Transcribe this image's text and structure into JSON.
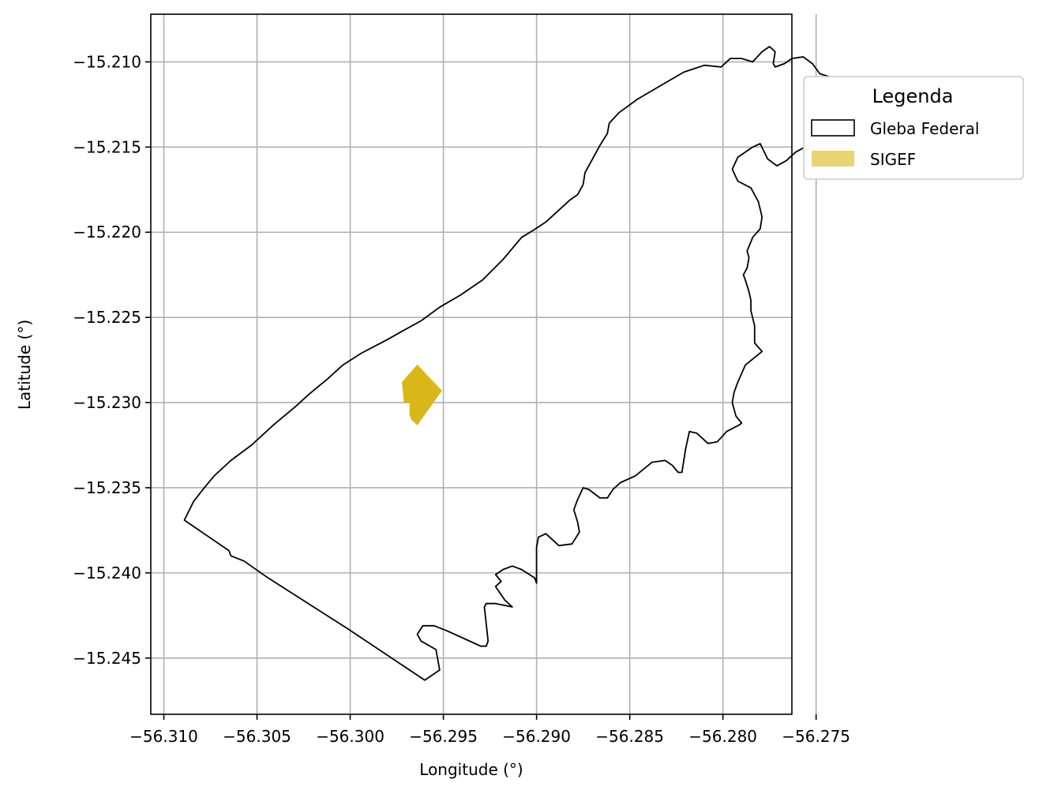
{
  "chart_data": {
    "type": "map",
    "xlabel": "Longitude (°)",
    "ylabel": "Latitude (°)",
    "xlim": [
      -56.3107,
      -56.2763
    ],
    "ylim": [
      -15.2483,
      -15.2072
    ],
    "xticks": [
      -56.31,
      -56.305,
      -56.3,
      -56.295,
      -56.29,
      -56.285,
      -56.28,
      -56.275
    ],
    "xtick_labels": [
      "−56.310",
      "−56.305",
      "−56.300",
      "−56.295",
      "−56.290",
      "−56.285",
      "−56.280",
      "−56.275"
    ],
    "yticks": [
      -15.21,
      -15.215,
      -15.22,
      -15.225,
      -15.23,
      -15.235,
      -15.24,
      -15.245
    ],
    "ytick_labels": [
      "−15.210",
      "−15.215",
      "−15.220",
      "−15.225",
      "−15.230",
      "−15.235",
      "−15.240",
      "−15.245"
    ],
    "grid": true,
    "legend": {
      "title": "Legenda",
      "placement": "outside-upper-right",
      "entries": [
        {
          "label": "Gleba Federal",
          "style": "outline",
          "edge_color": "#000000"
        },
        {
          "label": "SIGEF",
          "style": "fill",
          "fill_color": "#DAB718",
          "alpha": 0.6
        }
      ]
    },
    "layers": [
      {
        "name": "Gleba Federal",
        "edge_color": "#000000",
        "fill": "none",
        "coordinates": [
          [
            -56.3089,
            -15.2369
          ],
          [
            -56.3065,
            -15.2387
          ],
          [
            -56.3064,
            -15.239
          ],
          [
            -56.3057,
            -15.2393
          ],
          [
            -56.3044,
            -15.2403
          ],
          [
            -56.3001,
            -15.2433
          ],
          [
            -56.296,
            -15.2463
          ],
          [
            -56.2952,
            -15.2457
          ],
          [
            -56.2954,
            -15.2445
          ],
          [
            -56.2962,
            -15.244
          ],
          [
            -56.2964,
            -15.2436
          ],
          [
            -56.2961,
            -15.2431
          ],
          [
            -56.2955,
            -15.2431
          ],
          [
            -56.2948,
            -15.2434
          ],
          [
            -56.2938,
            -15.2439
          ],
          [
            -56.293,
            -15.2443
          ],
          [
            -56.2927,
            -15.2443
          ],
          [
            -56.2926,
            -15.244
          ],
          [
            -56.2927,
            -15.243
          ],
          [
            -56.2928,
            -15.242
          ],
          [
            -56.2927,
            -15.2418
          ],
          [
            -56.2922,
            -15.2418
          ],
          [
            -56.2913,
            -15.242
          ],
          [
            -56.2917,
            -15.2416
          ],
          [
            -56.2922,
            -15.2408
          ],
          [
            -56.2919,
            -15.2405
          ],
          [
            -56.2922,
            -15.2401
          ],
          [
            -56.2918,
            -15.2398
          ],
          [
            -56.2913,
            -15.2396
          ],
          [
            -56.2908,
            -15.2398
          ],
          [
            -56.2901,
            -15.2403
          ],
          [
            -56.29,
            -15.2406
          ],
          [
            -56.29,
            -15.2385
          ],
          [
            -56.2899,
            -15.2379
          ],
          [
            -56.2895,
            -15.2377
          ],
          [
            -56.2888,
            -15.2384
          ],
          [
            -56.2881,
            -15.2383
          ],
          [
            -56.2877,
            -15.2376
          ],
          [
            -56.2878,
            -15.237
          ],
          [
            -56.288,
            -15.2363
          ],
          [
            -56.2878,
            -15.2357
          ],
          [
            -56.2875,
            -15.235
          ],
          [
            -56.2872,
            -15.2351
          ],
          [
            -56.2866,
            -15.2356
          ],
          [
            -56.2862,
            -15.2356
          ],
          [
            -56.2859,
            -15.2351
          ],
          [
            -56.2855,
            -15.2347
          ],
          [
            -56.2847,
            -15.2343
          ],
          [
            -56.2838,
            -15.2335
          ],
          [
            -56.2831,
            -15.2334
          ],
          [
            -56.2827,
            -15.2337
          ],
          [
            -56.2824,
            -15.2341
          ],
          [
            -56.2822,
            -15.2341
          ],
          [
            -56.282,
            -15.2327
          ],
          [
            -56.2818,
            -15.2317
          ],
          [
            -56.2814,
            -15.2318
          ],
          [
            -56.2808,
            -15.2324
          ],
          [
            -56.2803,
            -15.2323
          ],
          [
            -56.2798,
            -15.2317
          ],
          [
            -56.2791,
            -15.2313
          ],
          [
            -56.279,
            -15.2312
          ],
          [
            -56.2793,
            -15.2308
          ],
          [
            -56.2795,
            -15.23
          ],
          [
            -56.2794,
            -15.2294
          ],
          [
            -56.2792,
            -15.2288
          ],
          [
            -56.2788,
            -15.2278
          ],
          [
            -56.2779,
            -15.227
          ],
          [
            -56.2783,
            -15.2265
          ],
          [
            -56.2783,
            -15.2255
          ],
          [
            -56.2785,
            -15.2246
          ],
          [
            -56.2785,
            -15.224
          ],
          [
            -56.2786,
            -15.2235
          ],
          [
            -56.2788,
            -15.2228
          ],
          [
            -56.2789,
            -15.2225
          ],
          [
            -56.2787,
            -15.2221
          ],
          [
            -56.2786,
            -15.2215
          ],
          [
            -56.2787,
            -15.2211
          ],
          [
            -56.2784,
            -15.2203
          ],
          [
            -56.278,
            -15.2198
          ],
          [
            -56.2779,
            -15.2191
          ],
          [
            -56.2781,
            -15.2182
          ],
          [
            -56.2785,
            -15.2174
          ],
          [
            -56.2792,
            -15.217
          ],
          [
            -56.2795,
            -15.2163
          ],
          [
            -56.2792,
            -15.2156
          ],
          [
            -56.2784,
            -15.215
          ],
          [
            -56.278,
            -15.2148
          ],
          [
            -56.2776,
            -15.2157
          ],
          [
            -56.2771,
            -15.2161
          ],
          [
            -56.2766,
            -15.2158
          ],
          [
            -56.2761,
            -15.2153
          ],
          [
            -56.2756,
            -15.215
          ],
          [
            -56.2753,
            -15.2144
          ],
          [
            -56.2745,
            -15.2136
          ],
          [
            -56.2742,
            -15.2131
          ],
          [
            -56.2737,
            -15.2124
          ],
          [
            -56.2736,
            -15.2117
          ],
          [
            -56.2739,
            -15.211
          ],
          [
            -56.2748,
            -15.2107
          ],
          [
            -56.2752,
            -15.2101
          ],
          [
            -56.2757,
            -15.2097
          ],
          [
            -56.2763,
            -15.2098
          ],
          [
            -56.2767,
            -15.2101
          ],
          [
            -56.2772,
            -15.2103
          ],
          [
            -56.2773,
            -15.2101
          ],
          [
            -56.2772,
            -15.2094
          ],
          [
            -56.2775,
            -15.2091
          ],
          [
            -56.2779,
            -15.2094
          ],
          [
            -56.2784,
            -15.21
          ],
          [
            -56.279,
            -15.2098
          ],
          [
            -56.2796,
            -15.2098
          ],
          [
            -56.2801,
            -15.2103
          ],
          [
            -56.281,
            -15.2102
          ],
          [
            -56.2821,
            -15.2106
          ],
          [
            -56.2832,
            -15.2113
          ],
          [
            -56.2846,
            -15.2122
          ],
          [
            -56.2856,
            -15.213
          ],
          [
            -56.2861,
            -15.2136
          ],
          [
            -56.2862,
            -15.2142
          ],
          [
            -56.2866,
            -15.2149
          ],
          [
            -56.2871,
            -15.2159
          ],
          [
            -56.2874,
            -15.2165
          ],
          [
            -56.2875,
            -15.2172
          ],
          [
            -56.2878,
            -15.2178
          ],
          [
            -56.2882,
            -15.2181
          ],
          [
            -56.2889,
            -15.2188
          ],
          [
            -56.2895,
            -15.2194
          ],
          [
            -56.2902,
            -15.2199
          ],
          [
            -56.2908,
            -15.2203
          ],
          [
            -56.2918,
            -15.2216
          ],
          [
            -56.2929,
            -15.2228
          ],
          [
            -56.2941,
            -15.2237
          ],
          [
            -56.2952,
            -15.2244
          ],
          [
            -56.2962,
            -15.2252
          ],
          [
            -56.2972,
            -15.2258
          ],
          [
            -56.298,
            -15.2263
          ],
          [
            -56.2987,
            -15.2267
          ],
          [
            -56.2994,
            -15.2271
          ],
          [
            -56.3004,
            -15.2278
          ],
          [
            -56.3012,
            -15.2286
          ],
          [
            -56.3022,
            -15.2295
          ],
          [
            -56.3029,
            -15.2302
          ],
          [
            -56.3041,
            -15.2313
          ],
          [
            -56.3047,
            -15.2319
          ],
          [
            -56.3053,
            -15.2325
          ],
          [
            -56.3064,
            -15.2334
          ],
          [
            -56.3073,
            -15.2343
          ],
          [
            -56.3079,
            -15.2351
          ],
          [
            -56.3084,
            -15.2358
          ],
          [
            -56.3089,
            -15.2369
          ]
        ]
      },
      {
        "name": "SIGEF",
        "fill_color": "#DAB718",
        "coordinates": [
          [
            -56.2964,
            -15.2278
          ],
          [
            -56.2972,
            -15.2288
          ],
          [
            -56.2971,
            -15.23
          ],
          [
            -56.2968,
            -15.23
          ],
          [
            -56.2968,
            -15.2307
          ],
          [
            -56.2967,
            -15.231
          ],
          [
            -56.2964,
            -15.2313
          ],
          [
            -56.2951,
            -15.2293
          ],
          [
            -56.2964,
            -15.2278
          ]
        ]
      }
    ]
  }
}
